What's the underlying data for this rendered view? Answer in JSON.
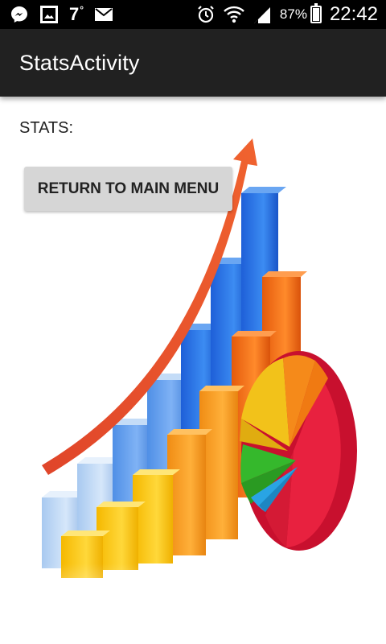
{
  "status_bar": {
    "temperature": "7",
    "temperature_unit": "°",
    "battery_percent": "87%",
    "battery_level": 0.87,
    "time": "22:42",
    "icons": [
      "messenger-icon",
      "gallery-icon",
      "mail-icon",
      "alarm-icon",
      "wifi-icon",
      "signal-icon",
      "battery-icon"
    ]
  },
  "action_bar": {
    "title": "StatsActivity"
  },
  "content": {
    "stats_label": "STATS:",
    "return_button_label": "RETURN TO MAIN MENU",
    "illustration": "bar-chart-with-pie-and-arrow"
  },
  "colors": {
    "status_bar_bg": "#000000",
    "action_bar_bg": "#212121",
    "button_bg": "#d6d6d6",
    "page_bg": "#ffffff"
  }
}
